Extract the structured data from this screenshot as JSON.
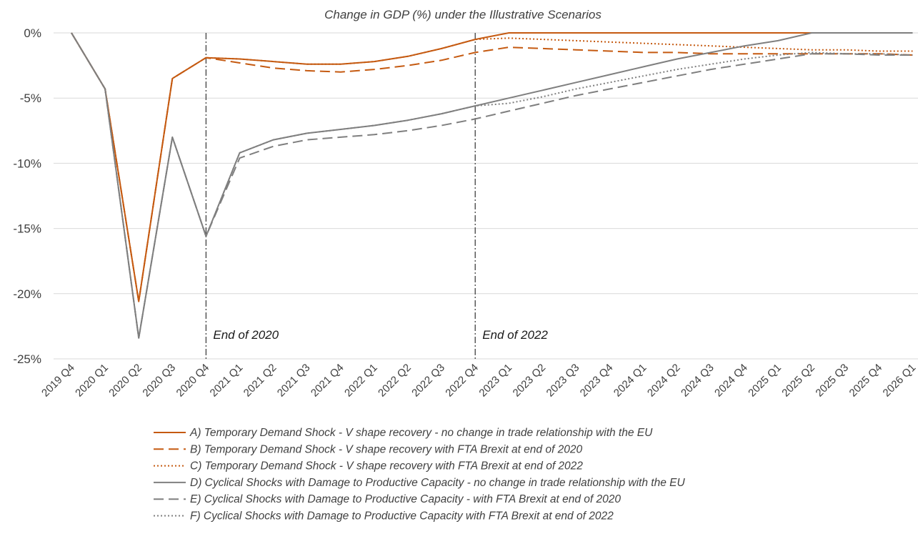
{
  "chart_data": {
    "type": "line",
    "title": "Change in GDP (%) under the Illustrative Scenarios",
    "xlabel": "",
    "ylabel": "",
    "ylim": [
      -25,
      0
    ],
    "yticks": [
      0,
      -5,
      -10,
      -15,
      -20,
      -25
    ],
    "ytick_labels": [
      "0%",
      "-5%",
      "-10%",
      "-15%",
      "-20%",
      "-25%"
    ],
    "grid": true,
    "legend_position": "bottom",
    "categories": [
      "2019 Q4",
      "2020 Q1",
      "2020 Q2",
      "2020 Q3",
      "2020 Q4",
      "2021 Q1",
      "2021 Q2",
      "2021 Q3",
      "2021 Q4",
      "2022 Q1",
      "2022 Q2",
      "2022 Q3",
      "2022 Q4",
      "2023 Q1",
      "2023 Q2",
      "2023 Q3",
      "2023 Q4",
      "2024 Q1",
      "2024 Q2",
      "2024 Q3",
      "2024 Q4",
      "2025 Q1",
      "2025 Q2",
      "2025 Q3",
      "2025 Q4",
      "2026 Q1"
    ],
    "annotations": [
      {
        "category": "2020 Q4",
        "text": "End of 2020"
      },
      {
        "category": "2022 Q4",
        "text": "End of 2022"
      }
    ],
    "series": [
      {
        "name": "A) Temporary Demand Shock - V shape recovery - no change in trade relationship with the EU",
        "color": "#c55a11",
        "dash": "solid",
        "values": [
          0,
          -4.3,
          -20.6,
          -3.5,
          -1.9,
          -2.0,
          -2.2,
          -2.4,
          -2.4,
          -2.2,
          -1.8,
          -1.2,
          -0.5,
          0,
          0,
          0,
          0,
          0,
          0,
          0,
          0,
          0,
          0,
          0,
          0,
          0
        ]
      },
      {
        "name": "B) Temporary Demand Shock - V shape recovery with FTA Brexit at end of 2020",
        "color": "#c55a11",
        "dash": "dashed",
        "values": [
          0,
          -4.3,
          -20.6,
          -3.5,
          -1.9,
          -2.3,
          -2.7,
          -2.9,
          -3.0,
          -2.8,
          -2.5,
          -2.1,
          -1.5,
          -1.1,
          -1.2,
          -1.3,
          -1.4,
          -1.5,
          -1.5,
          -1.6,
          -1.6,
          -1.6,
          -1.6,
          -1.6,
          -1.6,
          -1.7
        ]
      },
      {
        "name": "C) Temporary Demand Shock - V shape recovery with FTA Brexit at end of 2022",
        "color": "#c55a11",
        "dash": "dotted",
        "values": [
          0,
          -4.3,
          -20.6,
          -3.5,
          -1.9,
          -2.0,
          -2.2,
          -2.4,
          -2.4,
          -2.2,
          -1.8,
          -1.2,
          -0.5,
          -0.4,
          -0.5,
          -0.6,
          -0.7,
          -0.8,
          -0.9,
          -1.0,
          -1.1,
          -1.2,
          -1.3,
          -1.3,
          -1.4,
          -1.4
        ]
      },
      {
        "name": "D) Cyclical Shocks with Damage to Productive Capacity - no change in trade relationship with the EU",
        "color": "#7f7f7f",
        "dash": "solid",
        "values": [
          0,
          -4.3,
          -23.4,
          -8.0,
          -15.6,
          -9.2,
          -8.2,
          -7.7,
          -7.4,
          -7.1,
          -6.7,
          -6.2,
          -5.6,
          -5.0,
          -4.4,
          -3.8,
          -3.2,
          -2.6,
          -2.0,
          -1.5,
          -1.0,
          -0.6,
          0,
          0,
          0,
          0
        ]
      },
      {
        "name": "E) Cyclical Shocks with Damage to Productive Capacity - with FTA Brexit at end of 2020",
        "color": "#7f7f7f",
        "dash": "dashed",
        "values": [
          0,
          -4.3,
          -23.4,
          -8.0,
          -15.6,
          -9.6,
          -8.7,
          -8.2,
          -8.0,
          -7.8,
          -7.5,
          -7.1,
          -6.6,
          -6.0,
          -5.4,
          -4.8,
          -4.3,
          -3.8,
          -3.3,
          -2.8,
          -2.4,
          -2.0,
          -1.6,
          -1.6,
          -1.7,
          -1.7
        ]
      },
      {
        "name": "F) Cyclical Shocks with Damage to Productive Capacity with FTA Brexit at end of 2022",
        "color": "#7f7f7f",
        "dash": "dotted",
        "values": [
          0,
          -4.3,
          -23.4,
          -8.0,
          -15.6,
          -9.2,
          -8.2,
          -7.7,
          -7.4,
          -7.1,
          -6.7,
          -6.2,
          -5.6,
          -5.4,
          -4.9,
          -4.3,
          -3.8,
          -3.3,
          -2.8,
          -2.4,
          -2.0,
          -1.7,
          -1.5,
          -1.6,
          -1.6,
          -1.7
        ]
      }
    ]
  }
}
